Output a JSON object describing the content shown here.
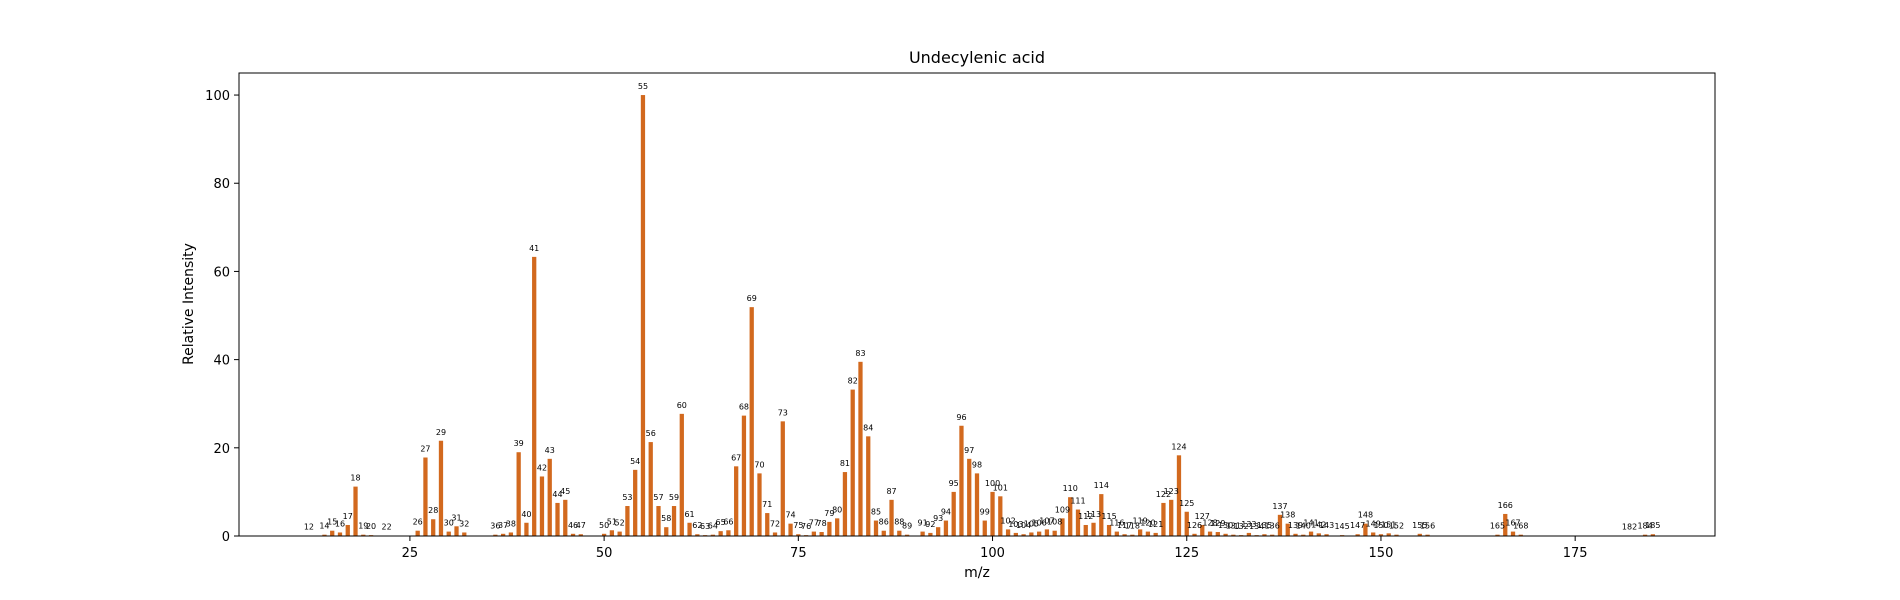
{
  "chart_data": {
    "type": "bar",
    "title": "Undecylenic acid",
    "xlabel": "m/z",
    "ylabel": "Relative Intensity",
    "xlim": [
      3,
      193
    ],
    "ylim": [
      0,
      105
    ],
    "xticks": [
      25,
      50,
      75,
      100,
      125,
      150,
      175
    ],
    "yticks": [
      0,
      20,
      40,
      60,
      80,
      100
    ],
    "bar_color": "#d2691e",
    "grid": false,
    "x": [
      12,
      14,
      15,
      16,
      17,
      18,
      19,
      20,
      22,
      26,
      27,
      28,
      29,
      30,
      31,
      32,
      36,
      37,
      38,
      39,
      40,
      41,
      42,
      43,
      44,
      45,
      46,
      47,
      50,
      51,
      52,
      53,
      54,
      55,
      56,
      57,
      58,
      59,
      60,
      61,
      62,
      63,
      64,
      65,
      66,
      67,
      68,
      69,
      70,
      71,
      72,
      73,
      74,
      75,
      76,
      77,
      78,
      79,
      80,
      81,
      82,
      83,
      84,
      85,
      86,
      87,
      88,
      89,
      91,
      92,
      93,
      94,
      95,
      96,
      97,
      98,
      99,
      100,
      101,
      102,
      103,
      104,
      105,
      106,
      107,
      108,
      109,
      110,
      111,
      112,
      113,
      114,
      115,
      116,
      117,
      118,
      119,
      120,
      121,
      122,
      123,
      124,
      125,
      126,
      127,
      128,
      129,
      130,
      131,
      132,
      133,
      134,
      135,
      136,
      137,
      138,
      139,
      140,
      141,
      142,
      143,
      145,
      147,
      148,
      149,
      150,
      151,
      152,
      155,
      156,
      165,
      166,
      167,
      168,
      182,
      184,
      185
    ],
    "values": [
      0.1,
      0.3,
      1.2,
      0.8,
      2.5,
      11.2,
      0.3,
      0.2,
      0.1,
      1.2,
      17.8,
      3.8,
      21.6,
      1.0,
      2.2,
      0.8,
      0.3,
      0.5,
      0.8,
      19.0,
      3.0,
      63.3,
      13.5,
      17.5,
      7.5,
      8.2,
      0.5,
      0.4,
      0.5,
      1.3,
      1.0,
      6.8,
      15.0,
      100.0,
      21.3,
      6.8,
      2.0,
      6.8,
      27.7,
      3.0,
      0.4,
      0.2,
      0.3,
      1.1,
      1.3,
      15.8,
      27.3,
      51.9,
      14.2,
      5.2,
      0.8,
      26.0,
      2.8,
      0.4,
      0.2,
      1.0,
      0.9,
      3.2,
      4.0,
      14.5,
      33.2,
      39.5,
      22.6,
      3.5,
      1.2,
      8.2,
      1.2,
      0.3,
      1.0,
      0.7,
      2.0,
      3.5,
      10.0,
      25.0,
      17.5,
      14.2,
      3.5,
      10.0,
      9.0,
      1.5,
      0.7,
      0.4,
      0.8,
      1.0,
      1.5,
      1.2,
      4.0,
      8.8,
      6.0,
      2.5,
      3.0,
      9.5,
      2.5,
      1.0,
      0.4,
      0.3,
      1.5,
      1.0,
      0.7,
      7.5,
      8.2,
      18.3,
      5.5,
      0.5,
      2.5,
      1.0,
      0.9,
      0.5,
      0.3,
      0.2,
      0.7,
      0.2,
      0.4,
      0.3,
      4.8,
      2.8,
      0.5,
      0.3,
      1.0,
      0.6,
      0.4,
      0.2,
      0.4,
      2.8,
      0.8,
      0.4,
      0.6,
      0.3,
      0.5,
      0.3,
      0.3,
      5.0,
      1.0,
      0.3,
      0.1,
      0.3,
      0.4
    ],
    "labels": [
      "12",
      "14",
      "15",
      "16",
      "17",
      "18",
      "19",
      "20",
      "22",
      "26",
      "27",
      "28",
      "29",
      "30",
      "31",
      "32",
      "36",
      "37",
      "38",
      "39",
      "40",
      "41",
      "42",
      "43",
      "44",
      "45",
      "46",
      "47",
      "50",
      "51",
      "52",
      "53",
      "54",
      "55",
      "56",
      "57",
      "58",
      "59",
      "60",
      "61",
      "62",
      "63",
      "64",
      "65",
      "66",
      "67",
      "68",
      "69",
      "70",
      "71",
      "72",
      "73",
      "74",
      "75",
      "76",
      "77",
      "78",
      "79",
      "80",
      "81",
      "82",
      "83",
      "84",
      "85",
      "86",
      "87",
      "88",
      "89",
      "91",
      "92",
      "93",
      "94",
      "95",
      "96",
      "97",
      "98",
      "99",
      "100",
      "101",
      "102",
      "103",
      "104",
      "105",
      "106",
      "107",
      "108",
      "109",
      "110",
      "111",
      "112",
      "113",
      "114",
      "115",
      "116",
      "117",
      "118",
      "119",
      "120",
      "121",
      "122",
      "123",
      "124",
      "125",
      "126",
      "127",
      "128",
      "129",
      "130",
      "131",
      "132",
      "133",
      "134",
      "135",
      "136",
      "137",
      "138",
      "139",
      "140",
      "141",
      "142",
      "143",
      "145",
      "147",
      "148",
      "149",
      "150",
      "151",
      "152",
      "155",
      "156",
      "165",
      "166",
      "167",
      "168",
      "182",
      "184",
      "185"
    ]
  }
}
